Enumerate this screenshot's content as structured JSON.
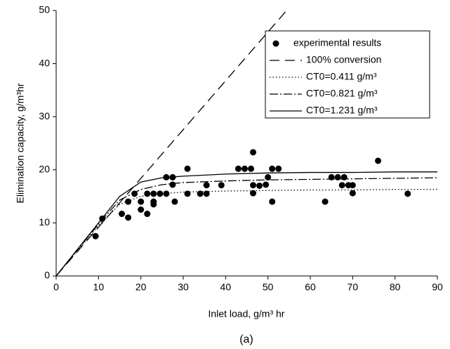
{
  "chart_data": {
    "type": "scatter-line",
    "xlabel": "Inlet load, g/m³ hr",
    "ylabel": "Elimination capacity, g/m³hr",
    "caption": "(a)",
    "xlim": [
      0,
      90
    ],
    "xticks": [
      0,
      10,
      20,
      30,
      40,
      50,
      60,
      70,
      80,
      90
    ],
    "ylim": [
      0,
      50
    ],
    "yticks": [
      0,
      10,
      20,
      30,
      40,
      50
    ],
    "series": [
      {
        "name": "experimental results",
        "kind": "scatter",
        "color": "#000000",
        "x": [
          9.3,
          10.9,
          15.5,
          17,
          17,
          18.5,
          20,
          20,
          21.5,
          21.5,
          23,
          23,
          23,
          24.5,
          26,
          26,
          27.5,
          27.5,
          28,
          31,
          31,
          34,
          35.5,
          35.5,
          39,
          43,
          44.5,
          46,
          46.5,
          46.5,
          46.5,
          48,
          49.5,
          50,
          51,
          51,
          52.5,
          63.5,
          65,
          66.5,
          67.5,
          68,
          69,
          70,
          70,
          76,
          83
        ],
        "values": [
          7.5,
          10.8,
          11.7,
          11,
          14,
          15.5,
          14,
          12.5,
          11.7,
          15.5,
          15.5,
          14,
          13.5,
          15.5,
          15.5,
          18.6,
          18.6,
          17.2,
          14,
          20.2,
          15.5,
          15.5,
          15.5,
          17.1,
          17.1,
          20.2,
          20.2,
          20.2,
          23.3,
          17.1,
          15.6,
          17,
          17.2,
          18.6,
          20.2,
          14,
          20.2,
          14,
          18.6,
          18.6,
          17.1,
          18.6,
          17.1,
          15.6,
          17.1,
          21.7,
          15.5
        ]
      },
      {
        "name": "100% conversion",
        "kind": "line",
        "color": "#000000",
        "dash": "14,8",
        "x": [
          0,
          54.4
        ],
        "values": [
          0,
          50
        ]
      },
      {
        "name": "CT0=0.411 g/m³",
        "kind": "line",
        "color": "#000000",
        "dash": "1.5,3",
        "x": [
          0,
          10,
          15,
          20,
          25,
          30,
          40,
          50,
          60,
          70,
          80,
          90
        ],
        "values": [
          0,
          9.5,
          13.5,
          15.0,
          15.5,
          15.8,
          16.0,
          16.1,
          16.2,
          16.2,
          16.3,
          16.3
        ]
      },
      {
        "name": "CT0=0.821 g/m³",
        "kind": "line",
        "color": "#000000",
        "dash": "12,3,2,3",
        "x": [
          0,
          10,
          15,
          20,
          25,
          30,
          40,
          50,
          60,
          70,
          80,
          90
        ],
        "values": [
          0,
          9.8,
          14.3,
          16.3,
          17.2,
          17.6,
          17.9,
          18.1,
          18.2,
          18.3,
          18.4,
          18.5
        ]
      },
      {
        "name": "CT0=1.231 g/m³",
        "kind": "line",
        "color": "#000000",
        "dash": "none",
        "x": [
          0,
          10,
          15,
          20,
          25,
          30,
          40,
          50,
          60,
          70,
          80,
          90
        ],
        "values": [
          0,
          10,
          15,
          17.7,
          18.5,
          18.8,
          19.2,
          19.4,
          19.5,
          19.5,
          19.6,
          19.6
        ]
      }
    ]
  }
}
